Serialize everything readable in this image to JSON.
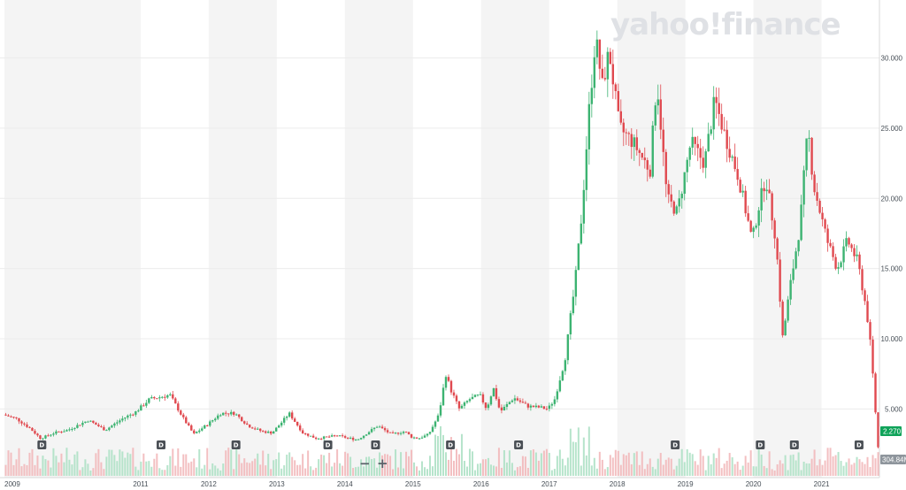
{
  "brand": {
    "name": "yahoo!finance"
  },
  "controls": {
    "zoom_out": "−",
    "zoom_in": "+"
  },
  "colors": {
    "up": "#3cb371",
    "down": "#e0494f",
    "band": "#f4f4f4",
    "price_badge": "#10a35a",
    "volume_badge": "#8e959c"
  },
  "chart_data": {
    "type": "candlestick",
    "title": "",
    "x_ticks": [
      "2009",
      "2011",
      "2012",
      "2013",
      "2014",
      "2015",
      "2016",
      "2017",
      "2018",
      "2019",
      "2020",
      "2021"
    ],
    "x_tick_years": [
      2009,
      2011,
      2012,
      2013,
      2014,
      2015,
      2016,
      2017,
      2018,
      2019,
      2020,
      2021
    ],
    "x_range": [
      2009.0,
      2021.85
    ],
    "y_ticks": [
      "5.000",
      "10.000",
      "15.000",
      "20.000",
      "25.000",
      "30.000"
    ],
    "y_tick_values": [
      5,
      10,
      15,
      20,
      25,
      30
    ],
    "y_range": [
      2,
      33.5
    ],
    "last_price": "2.270",
    "last_price_value": 2.27,
    "last_volume": "304.84M",
    "grid": true,
    "price_path": [
      [
        2009.0,
        4.6
      ],
      [
        2009.2,
        4.3
      ],
      [
        2009.4,
        3.6
      ],
      [
        2009.55,
        2.9
      ],
      [
        2009.75,
        3.3
      ],
      [
        2009.95,
        3.5
      ],
      [
        2010.25,
        4.2
      ],
      [
        2010.5,
        3.5
      ],
      [
        2010.75,
        4.3
      ],
      [
        2010.95,
        4.8
      ],
      [
        2011.15,
        5.7
      ],
      [
        2011.45,
        6.0
      ],
      [
        2011.65,
        4.3
      ],
      [
        2011.8,
        3.2
      ],
      [
        2012.0,
        3.9
      ],
      [
        2012.2,
        4.7
      ],
      [
        2012.4,
        4.7
      ],
      [
        2012.6,
        3.8
      ],
      [
        2012.8,
        3.4
      ],
      [
        2012.95,
        3.3
      ],
      [
        2013.1,
        4.1
      ],
      [
        2013.2,
        4.7
      ],
      [
        2013.4,
        3.3
      ],
      [
        2013.6,
        2.9
      ],
      [
        2013.9,
        3.1
      ],
      [
        2014.2,
        2.8
      ],
      [
        2014.5,
        3.8
      ],
      [
        2014.7,
        3.2
      ],
      [
        2014.9,
        3.4
      ],
      [
        2015.0,
        3.0
      ],
      [
        2015.1,
        2.9
      ],
      [
        2015.25,
        3.2
      ],
      [
        2015.4,
        4.6
      ],
      [
        2015.5,
        7.5
      ],
      [
        2015.58,
        6.3
      ],
      [
        2015.7,
        5.0
      ],
      [
        2015.85,
        5.7
      ],
      [
        2016.0,
        6.0
      ],
      [
        2016.1,
        5.0
      ],
      [
        2016.2,
        6.5
      ],
      [
        2016.3,
        4.8
      ],
      [
        2016.5,
        5.8
      ],
      [
        2016.7,
        5.2
      ],
      [
        2016.9,
        5.1
      ],
      [
        2017.0,
        5.0
      ],
      [
        2017.1,
        5.7
      ],
      [
        2017.25,
        8.5
      ],
      [
        2017.4,
        14.0
      ],
      [
        2017.5,
        19.0
      ],
      [
        2017.6,
        26.0
      ],
      [
        2017.7,
        31.5
      ],
      [
        2017.8,
        28.0
      ],
      [
        2017.9,
        30.5
      ],
      [
        2018.05,
        25.0
      ],
      [
        2018.25,
        24.0
      ],
      [
        2018.5,
        22.0
      ],
      [
        2018.6,
        28.5
      ],
      [
        2018.75,
        20.0
      ],
      [
        2018.9,
        19.0
      ],
      [
        2019.1,
        24.0
      ],
      [
        2019.3,
        22.5
      ],
      [
        2019.45,
        27.0
      ],
      [
        2019.6,
        24.5
      ],
      [
        2019.8,
        21.5
      ],
      [
        2020.0,
        17.0
      ],
      [
        2020.1,
        19.5
      ],
      [
        2020.2,
        21.5
      ],
      [
        2020.35,
        17.0
      ],
      [
        2020.45,
        10.0
      ],
      [
        2020.55,
        13.5
      ],
      [
        2020.7,
        18.0
      ],
      [
        2020.82,
        25.0
      ],
      [
        2020.9,
        21.0
      ],
      [
        2021.0,
        19.0
      ],
      [
        2021.1,
        17.0
      ],
      [
        2021.25,
        15.0
      ],
      [
        2021.4,
        17.0
      ],
      [
        2021.55,
        15.5
      ],
      [
        2021.68,
        12.0
      ],
      [
        2021.75,
        9.0
      ],
      [
        2021.8,
        5.5
      ],
      [
        2021.85,
        2.27
      ]
    ],
    "events": [
      {
        "label": "D",
        "year": 2009.55
      },
      {
        "label": "D",
        "year": 2011.3
      },
      {
        "label": "D",
        "year": 2012.4
      },
      {
        "label": "D",
        "year": 2013.75
      },
      {
        "label": "D",
        "year": 2014.45
      },
      {
        "label": "D",
        "year": 2015.55
      },
      {
        "label": "D",
        "year": 2016.55
      },
      {
        "label": "D",
        "year": 2018.85
      },
      {
        "label": "D",
        "year": 2020.1
      },
      {
        "label": "D",
        "year": 2020.6
      },
      {
        "label": "D",
        "year": 2021.55
      }
    ]
  }
}
